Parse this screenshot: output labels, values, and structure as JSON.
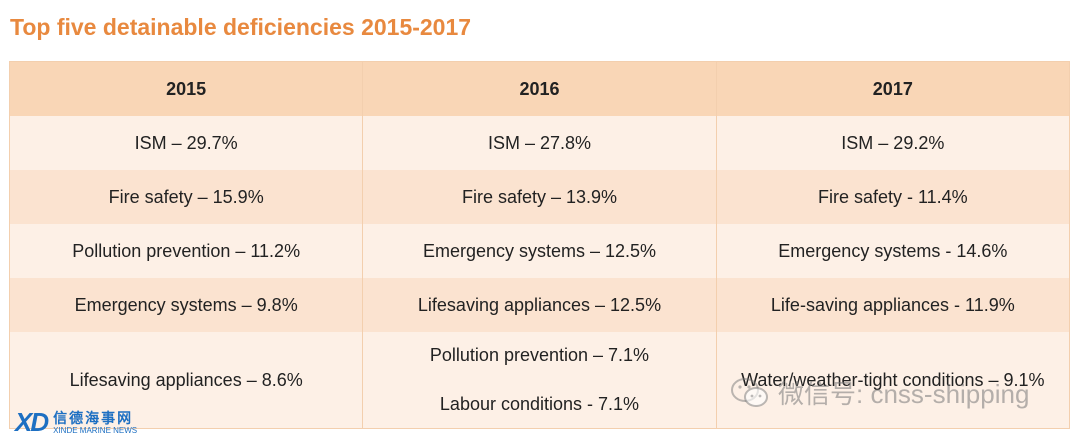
{
  "title": "Top five detainable deficiencies 2015-2017",
  "table": {
    "headers": [
      "2015",
      "2016",
      "2017"
    ],
    "rows": [
      [
        "ISM – 29.7%",
        "ISM – 27.8%",
        "ISM – 29.2%"
      ],
      [
        "Fire safety – 15.9%",
        "Fire safety – 13.9%",
        "Fire safety - 11.4%"
      ],
      [
        "Pollution prevention – 11.2%",
        "Emergency systems – 12.5%",
        "Emergency systems - 14.6%"
      ],
      [
        "Emergency systems – 9.8%",
        "Lifesaving appliances – 12.5%",
        "Life-saving appliances - 11.9%"
      ]
    ],
    "last_row": {
      "col2015": "Lifesaving appliances – 8.6%",
      "col2016_a": "Pollution prevention – 7.1%",
      "col2016_b": "Labour conditions - 7.1%",
      "col2017": "Water/weather-tight conditions – 9.1%"
    }
  },
  "watermark": {
    "wechat": "微信号: cnss-shipping",
    "icon": "wechat-icon"
  },
  "logo": {
    "mark": "XD",
    "name_cn": "信德海事网",
    "name_en": "XINDE MARINE NEWS"
  },
  "colors": {
    "title": "#e8893f",
    "header_bg": "#f9d6b6",
    "row_light": "#fdf0e6",
    "row_dark": "#fbe3d0",
    "logo": "#1d6fc2"
  }
}
